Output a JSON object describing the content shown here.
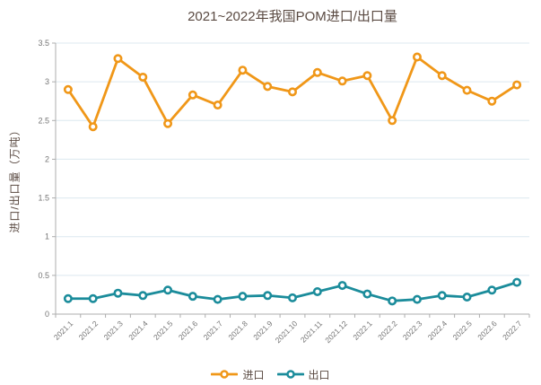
{
  "chart_data": {
    "type": "line",
    "title": "2021~2022年我国POM进口/出口量",
    "xlabel": "",
    "ylabel": "进口/出口量（万吨）",
    "categories": [
      "2021.1",
      "2021.2",
      "2021.3",
      "2021.4",
      "2021.5",
      "2021.6",
      "2021.7",
      "2021.8",
      "2021.9",
      "2021.10",
      "2021.11",
      "2021.12",
      "2022.1",
      "2022.2",
      "2022.3",
      "2022.4",
      "2022.5",
      "2022.6",
      "2022.7"
    ],
    "series": [
      {
        "name": "进口",
        "color": "#F09718",
        "values": [
          2.9,
          2.42,
          3.3,
          3.06,
          2.46,
          2.83,
          2.7,
          3.15,
          2.94,
          2.87,
          3.12,
          3.01,
          3.08,
          2.5,
          3.32,
          3.08,
          2.89,
          2.75,
          2.96
        ]
      },
      {
        "name": "出口",
        "color": "#1B8C9B",
        "values": [
          0.2,
          0.2,
          0.27,
          0.24,
          0.31,
          0.23,
          0.19,
          0.23,
          0.24,
          0.21,
          0.29,
          0.37,
          0.26,
          0.17,
          0.19,
          0.24,
          0.22,
          0.31,
          0.41
        ]
      }
    ],
    "ylim": [
      0,
      3.5
    ],
    "ytick_step": 0.5,
    "grid": "horizontal-only",
    "legend_position": "bottom-center",
    "colors": {
      "background": "#FFFFFF",
      "gridline": "#DCE8EF",
      "axis": "#ADADAD",
      "tick_text": "#767676",
      "title_text": "#5A4A42"
    }
  }
}
